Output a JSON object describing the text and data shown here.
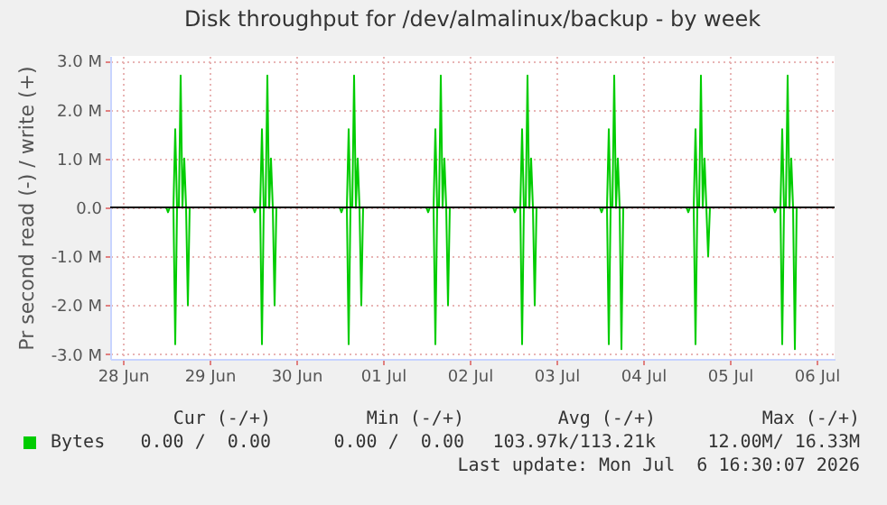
{
  "chart_data": {
    "type": "line",
    "title": "Disk throughput for /dev/almalinux/backup - by week",
    "ylabel": "Pr second read (-) / write (+)",
    "x": [
      "2026-06-28T08:30",
      "2026-06-29T00:00",
      "2026-06-29T00:30",
      "2026-06-29T01:00",
      "2026-06-29T02:00",
      "2026-06-29T02:30",
      "2026-06-29T03:00",
      "2026-06-29T03:30",
      "2026-06-29T04:00",
      "2026-06-29T04:30",
      "2026-06-29T05:00",
      "2026-06-29T05:30",
      "2026-06-29T06:00",
      "2026-06-29T06:30",
      "2026-06-30T00:00",
      "2026-06-30T00:30",
      "2026-06-30T01:00",
      "2026-06-30T02:00",
      "2026-06-30T02:30",
      "2026-06-30T03:00",
      "2026-06-30T03:30",
      "2026-06-30T04:00",
      "2026-06-30T04:30",
      "2026-06-30T05:00",
      "2026-06-30T05:30",
      "2026-06-30T06:00",
      "2026-06-30T06:30",
      "2026-07-01T00:00",
      "2026-07-01T00:30",
      "2026-07-01T01:00",
      "2026-07-01T02:00",
      "2026-07-01T02:30",
      "2026-07-01T03:00",
      "2026-07-01T03:30",
      "2026-07-01T04:00",
      "2026-07-01T04:30",
      "2026-07-01T05:00",
      "2026-07-01T05:30",
      "2026-07-01T06:00",
      "2026-07-01T06:30",
      "2026-07-02T00:00",
      "2026-07-02T00:30",
      "2026-07-02T01:00",
      "2026-07-02T02:00",
      "2026-07-02T02:30",
      "2026-07-02T03:00",
      "2026-07-02T03:30",
      "2026-07-02T04:00",
      "2026-07-02T04:30",
      "2026-07-02T05:00",
      "2026-07-02T05:30",
      "2026-07-02T06:00",
      "2026-07-02T06:30",
      "2026-07-03T00:00",
      "2026-07-03T00:30",
      "2026-07-03T01:00",
      "2026-07-03T02:00",
      "2026-07-03T02:30",
      "2026-07-03T03:00",
      "2026-07-03T03:30",
      "2026-07-03T04:00",
      "2026-07-03T04:30",
      "2026-07-03T05:00",
      "2026-07-03T05:30",
      "2026-07-03T06:00",
      "2026-07-03T06:30",
      "2026-07-04T00:00",
      "2026-07-04T00:30",
      "2026-07-04T01:00",
      "2026-07-04T02:00",
      "2026-07-04T02:30",
      "2026-07-04T03:00",
      "2026-07-04T03:30",
      "2026-07-04T04:00",
      "2026-07-04T04:30",
      "2026-07-04T05:00",
      "2026-07-04T05:30",
      "2026-07-04T06:00",
      "2026-07-04T06:30",
      "2026-07-05T00:00",
      "2026-07-05T00:30",
      "2026-07-05T01:00",
      "2026-07-05T02:00",
      "2026-07-05T02:30",
      "2026-07-05T03:00",
      "2026-07-05T03:30",
      "2026-07-05T04:00",
      "2026-07-05T04:30",
      "2026-07-05T05:00",
      "2026-07-05T05:30",
      "2026-07-05T06:00",
      "2026-07-05T06:30",
      "2026-07-06T00:00",
      "2026-07-06T00:30",
      "2026-07-06T01:00",
      "2026-07-06T02:00",
      "2026-07-06T02:30",
      "2026-07-06T03:00",
      "2026-07-06T03:30",
      "2026-07-06T04:00",
      "2026-07-06T04:30",
      "2026-07-06T05:00",
      "2026-07-06T05:30",
      "2026-07-06T06:00",
      "2026-07-06T06:30",
      "2026-07-06T16:30"
    ],
    "series": [
      {
        "name": "Bytes",
        "color": "#00cc00",
        "values": [
          0,
          0,
          0,
          0,
          0,
          1600000,
          0,
          0,
          2700000,
          0,
          1000000,
          0,
          0,
          0,
          0,
          0,
          0,
          0,
          1600000,
          0,
          0,
          2700000,
          0,
          1000000,
          0,
          0,
          0,
          0,
          0,
          0,
          0,
          1600000,
          0,
          0,
          2700000,
          0,
          1000000,
          0,
          0,
          0,
          0,
          0,
          0,
          0,
          1600000,
          0,
          0,
          2700000,
          0,
          1000000,
          0,
          0,
          0,
          0,
          0,
          0,
          0,
          1600000,
          0,
          0,
          2700000,
          0,
          1000000,
          0,
          0,
          0,
          0,
          0,
          0,
          0,
          1600000,
          0,
          0,
          2700000,
          0,
          1000000,
          0,
          0,
          0,
          0,
          0,
          0,
          0,
          1600000,
          0,
          0,
          2700000,
          0,
          1000000,
          0,
          0,
          0,
          0,
          0,
          0,
          0,
          1600000,
          0,
          0,
          2700000,
          0,
          1000000,
          0,
          0,
          0,
          0
        ]
      },
      {
        "color": "#00cc00",
        "values": [
          0,
          0,
          -100000,
          0,
          0,
          -2800000,
          0,
          0,
          0,
          0,
          0,
          0,
          -2000000,
          0,
          0,
          -100000,
          0,
          0,
          -2800000,
          0,
          0,
          0,
          0,
          0,
          0,
          -2000000,
          0,
          0,
          -100000,
          0,
          0,
          -2800000,
          0,
          0,
          0,
          0,
          0,
          0,
          -2000000,
          0,
          0,
          -100000,
          0,
          0,
          -2800000,
          0,
          0,
          0,
          0,
          0,
          0,
          -2000000,
          0,
          0,
          -100000,
          0,
          0,
          -2800000,
          0,
          0,
          0,
          0,
          0,
          0,
          -2000000,
          0,
          0,
          -100000,
          0,
          0,
          -2800000,
          0,
          0,
          0,
          0,
          0,
          0,
          -2900000,
          0,
          0,
          -100000,
          0,
          0,
          -2800000,
          0,
          0,
          0,
          0,
          0,
          0,
          -1000000,
          0,
          0,
          -100000,
          0,
          0,
          -2800000,
          0,
          0,
          0,
          0,
          0,
          0,
          -2900000,
          0,
          0
        ]
      }
    ],
    "xlim": [
      "2026-06-28T08:30",
      "2026-07-06T17:00"
    ],
    "xticks": [
      {
        "value": "2026-06-28T12:00",
        "label": "28 Jun"
      },
      {
        "value": "2026-06-29T12:00",
        "label": "29 Jun"
      },
      {
        "value": "2026-06-30T12:00",
        "label": "30 Jun"
      },
      {
        "value": "2026-07-01T12:00",
        "label": "01 Jul"
      },
      {
        "value": "2026-07-02T12:00",
        "label": "02 Jul"
      },
      {
        "value": "2026-07-03T12:00",
        "label": "03 Jul"
      },
      {
        "value": "2026-07-04T12:00",
        "label": "04 Jul"
      },
      {
        "value": "2026-07-05T12:00",
        "label": "05 Jul"
      },
      {
        "value": "2026-07-06T12:00",
        "label": "06 Jul"
      }
    ],
    "ylim": [
      -3100000,
      3100000
    ],
    "yticks": [
      {
        "value": -3000000,
        "label": "-3.0 M"
      },
      {
        "value": -2000000,
        "label": "-2.0 M"
      },
      {
        "value": -1000000,
        "label": "-1.0 M"
      },
      {
        "value": 0,
        "label": "0.0"
      },
      {
        "value": 1000000,
        "label": "1.0 M"
      },
      {
        "value": 2000000,
        "label": "2.0 M"
      },
      {
        "value": 3000000,
        "label": "3.0 M"
      }
    ],
    "ref_lines": [
      {
        "axis": "y",
        "value": 0,
        "color": "#000000"
      }
    ],
    "grid": true,
    "legend": "bottom",
    "line_style": "solid",
    "annotations": [
      "Cur (-/+)",
      "Min (-/+)",
      "Avg (-/+)",
      "Max (-/+)",
      "0.00 /  0.00",
      "0.00 /  0.00",
      "103.97k/113.21k",
      "12.00M/ 16.33M",
      "Last update: Mon Jul  6 16:30:07 2026"
    ]
  }
}
